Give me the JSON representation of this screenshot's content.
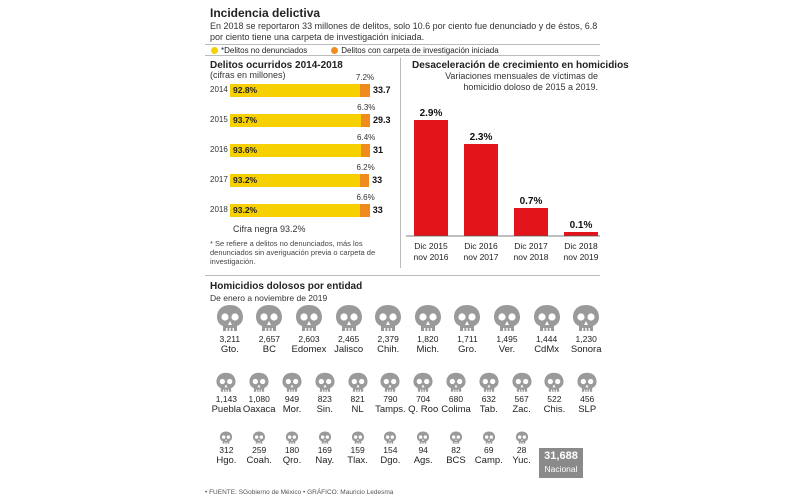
{
  "header": {
    "title": "Incidencia delictiva",
    "subtitle": "En 2018 se reportaron 33 millones de delitos, solo 10.6 por ciento fue denunciado y de éstos, 6.8 por ciento tiene una carpeta de investigación iniciada.",
    "legend": [
      {
        "label": "*Delitos no denunciados",
        "color": "#f6d000"
      },
      {
        "label": "Delitos con carpeta de investigación iniciada",
        "color": "#f08c1e"
      }
    ]
  },
  "colors": {
    "yellow": "#f6d000",
    "orange": "#f08c1e",
    "red": "#e3151a",
    "skull": "#9a9a9a",
    "national": "#8a8a8a"
  },
  "chart_data": [
    {
      "type": "bar",
      "title": "Delitos ocurridos 2014-2018",
      "subtitle": "(cifras en millones)",
      "categories": [
        "2014",
        "2015",
        "2016",
        "2017",
        "2018"
      ],
      "series": [
        {
          "name": "*Delitos no denunciados",
          "values": [
            92.8,
            93.7,
            93.6,
            93.2,
            93.2
          ],
          "labels": [
            "92.8%",
            "93.7%",
            "93.6%",
            "93.2%",
            "93.2%"
          ]
        },
        {
          "name": "Delitos con carpeta de investigación iniciada",
          "values": [
            7.2,
            6.3,
            6.4,
            6.2,
            6.6
          ],
          "labels": [
            "7.2%",
            "6.3%",
            "6.4%",
            "6.2%",
            "6.6%"
          ]
        }
      ],
      "totals": [
        "33.7",
        "29.3",
        "31",
        "33",
        "33"
      ],
      "note": "Cifra negra 93.2%",
      "footnote": "* Se refiere a delitos no denunciados, más los denunciados sin averiguación previa o carpeta de investigación."
    },
    {
      "type": "bar",
      "title": "Desaceleración de crecimiento en homicidios",
      "subtitle": "Variaciones mensuales de víctimas de homicidio doloso de 2015 a 2019.",
      "categories": [
        [
          "Dic 2015",
          "nov 2016"
        ],
        [
          "Dic 2016",
          "nov 2017"
        ],
        [
          "Dic 2017",
          "nov 2018"
        ],
        [
          "Dic 2018",
          "nov 2019"
        ]
      ],
      "values": [
        2.9,
        2.3,
        0.7,
        0.1
      ],
      "labels": [
        "2.9%",
        "2.3%",
        "0.7%",
        "0.1%"
      ],
      "ylim": [
        0,
        3.2
      ]
    },
    {
      "type": "table",
      "title": "Homicidios dolosos por entidad",
      "subtitle": "De enero a noviembre de 2019",
      "rows": [
        [
          {
            "value": "3,211",
            "state": "Gto."
          },
          {
            "value": "2,657",
            "state": "BC"
          },
          {
            "value": "2,603",
            "state": "Edomex"
          },
          {
            "value": "2,465",
            "state": "Jalisco"
          },
          {
            "value": "2,379",
            "state": "Chih."
          },
          {
            "value": "1,820",
            "state": "Mich."
          },
          {
            "value": "1,711",
            "state": "Gro."
          },
          {
            "value": "1,495",
            "state": "Ver."
          },
          {
            "value": "1,444",
            "state": "CdMx"
          },
          {
            "value": "1,230",
            "state": "Sonora"
          }
        ],
        [
          {
            "value": "1,143",
            "state": "Puebla"
          },
          {
            "value": "1,080",
            "state": "Oaxaca"
          },
          {
            "value": "949",
            "state": "Mor."
          },
          {
            "value": "823",
            "state": "Sin."
          },
          {
            "value": "821",
            "state": "NL"
          },
          {
            "value": "790",
            "state": "Tamps."
          },
          {
            "value": "704",
            "state": "Q. Roo"
          },
          {
            "value": "680",
            "state": "Colima"
          },
          {
            "value": "632",
            "state": "Tab."
          },
          {
            "value": "567",
            "state": "Zac."
          },
          {
            "value": "522",
            "state": "Chis."
          },
          {
            "value": "456",
            "state": "SLP"
          }
        ],
        [
          {
            "value": "312",
            "state": "Hgo."
          },
          {
            "value": "259",
            "state": "Coah."
          },
          {
            "value": "180",
            "state": "Qro."
          },
          {
            "value": "169",
            "state": "Nay."
          },
          {
            "value": "159",
            "state": "Tlax."
          },
          {
            "value": "154",
            "state": "Dgo."
          },
          {
            "value": "94",
            "state": "Ags."
          },
          {
            "value": "82",
            "state": "BCS"
          },
          {
            "value": "69",
            "state": "Camp."
          },
          {
            "value": "28",
            "state": "Yuc."
          }
        ]
      ],
      "national": {
        "value": "31,688",
        "label": "Nacional"
      }
    }
  ],
  "source": "• FUENTE: SGobierno de México • GRÁFICO: Mauricio Ledesma"
}
